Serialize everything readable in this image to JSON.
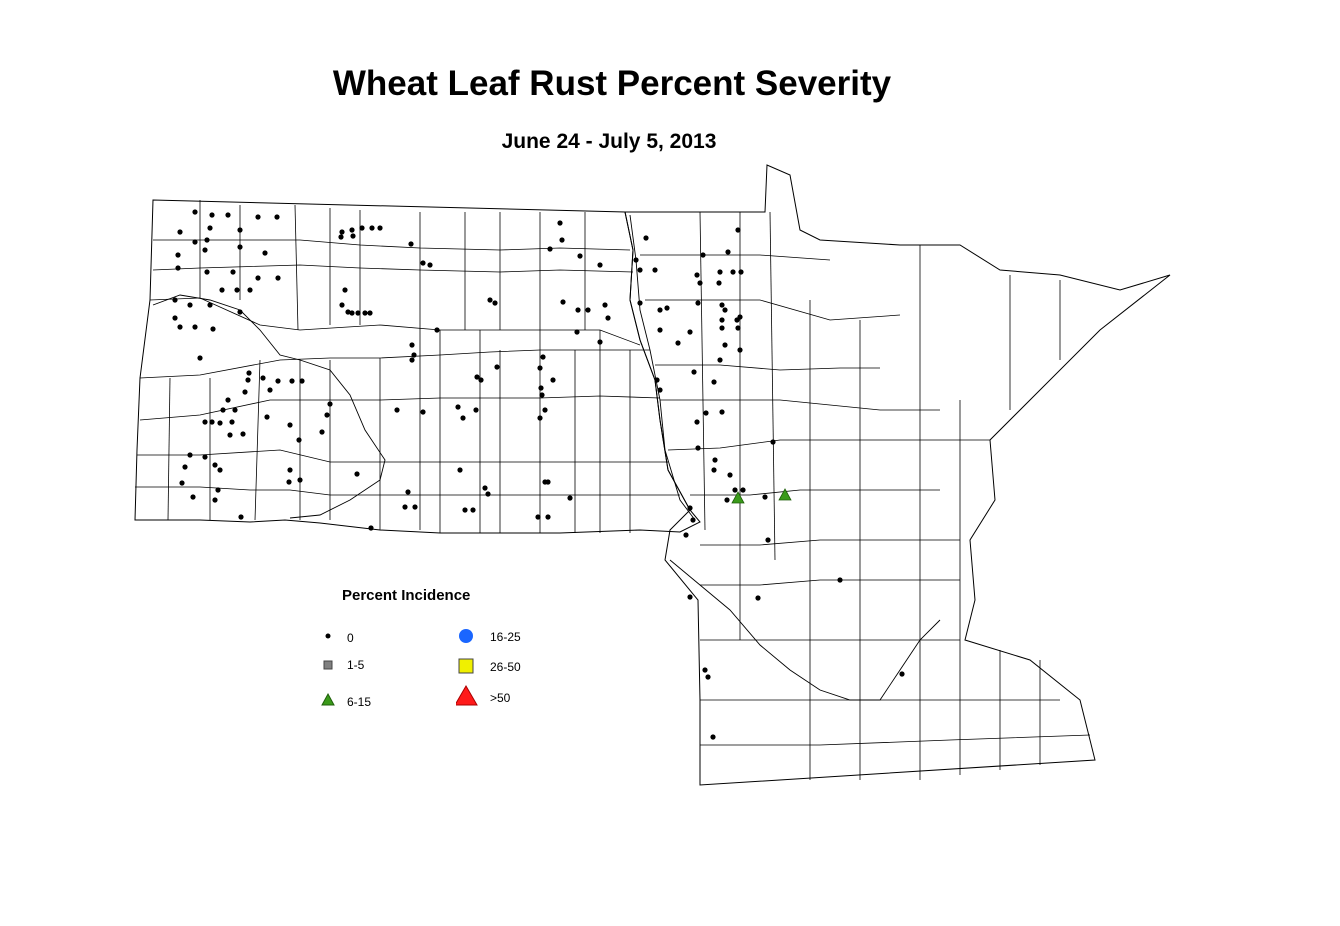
{
  "title": "Wheat Leaf Rust Percent Severity",
  "subtitle": "June 24 - July 5, 2013",
  "legend": {
    "title": "Percent Incidence",
    "items": [
      {
        "label": "0",
        "symbol": "small-black-dot",
        "color": "#000000"
      },
      {
        "label": "1-5",
        "symbol": "gray-square",
        "color": "#808080"
      },
      {
        "label": "6-15",
        "symbol": "green-triangle",
        "color": "#3a9a1a"
      },
      {
        "label": "16-25",
        "symbol": "blue-circle",
        "color": "#1a66ff"
      },
      {
        "label": "26-50",
        "symbol": "yellow-square",
        "color": "#f0f000"
      },
      {
        "label": ">50",
        "symbol": "red-triangle",
        "color": "#ff1a1a"
      }
    ]
  }
}
